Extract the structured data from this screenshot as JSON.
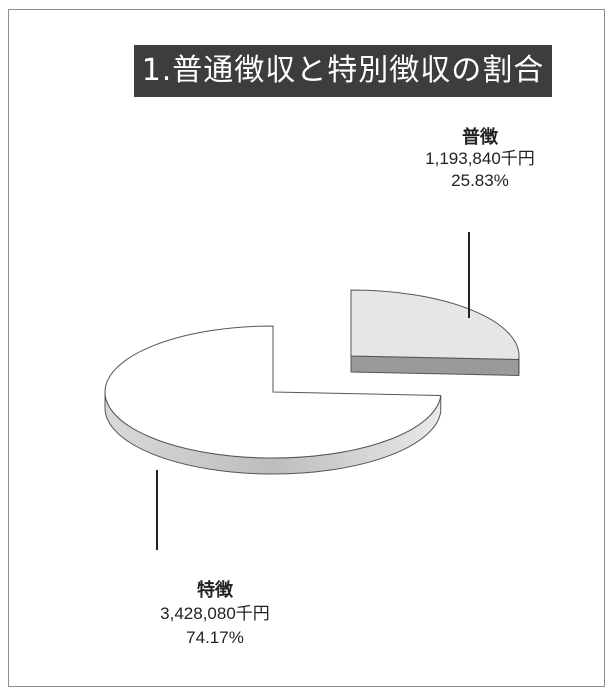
{
  "title": "1.普通徴収と特別徴収の割合",
  "chart_data": {
    "type": "pie",
    "series": [
      {
        "name": "普徴",
        "value": 1193840,
        "value_label": "1,193,840千円",
        "percent": 25.83,
        "percent_label": "25.83%",
        "exploded": true
      },
      {
        "name": "特徴",
        "value": 3428080,
        "value_label": "3,428,080千円",
        "percent": 74.17,
        "percent_label": "74.17%",
        "exploded": false
      }
    ],
    "style": "3d-exploded",
    "colors": {
      "primary_top": "#e6e6e6",
      "primary_side": "#7a7a7a",
      "secondary_top": "#ffffff",
      "secondary_side": "#bdbdbd",
      "outline": "#555555"
    }
  }
}
